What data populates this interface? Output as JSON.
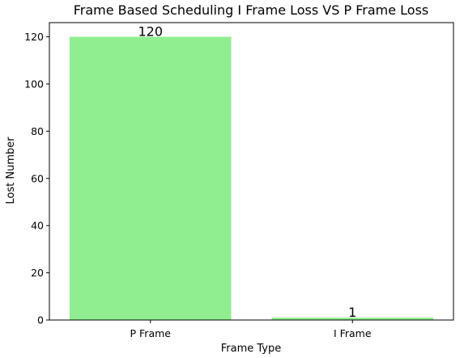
{
  "chart_data": {
    "type": "bar",
    "title": "Frame Based Scheduling I Frame Loss VS P Frame Loss",
    "xlabel": "Frame Type",
    "ylabel": "Lost Number",
    "categories": [
      "P Frame",
      "I Frame"
    ],
    "values": [
      120,
      1
    ],
    "data_labels": [
      "120",
      "1"
    ],
    "ylim": [
      0,
      126
    ],
    "yticks": [
      0,
      20,
      40,
      60,
      80,
      100,
      120
    ],
    "bar_color": "#90ee90",
    "grid": false,
    "legend": "none"
  }
}
